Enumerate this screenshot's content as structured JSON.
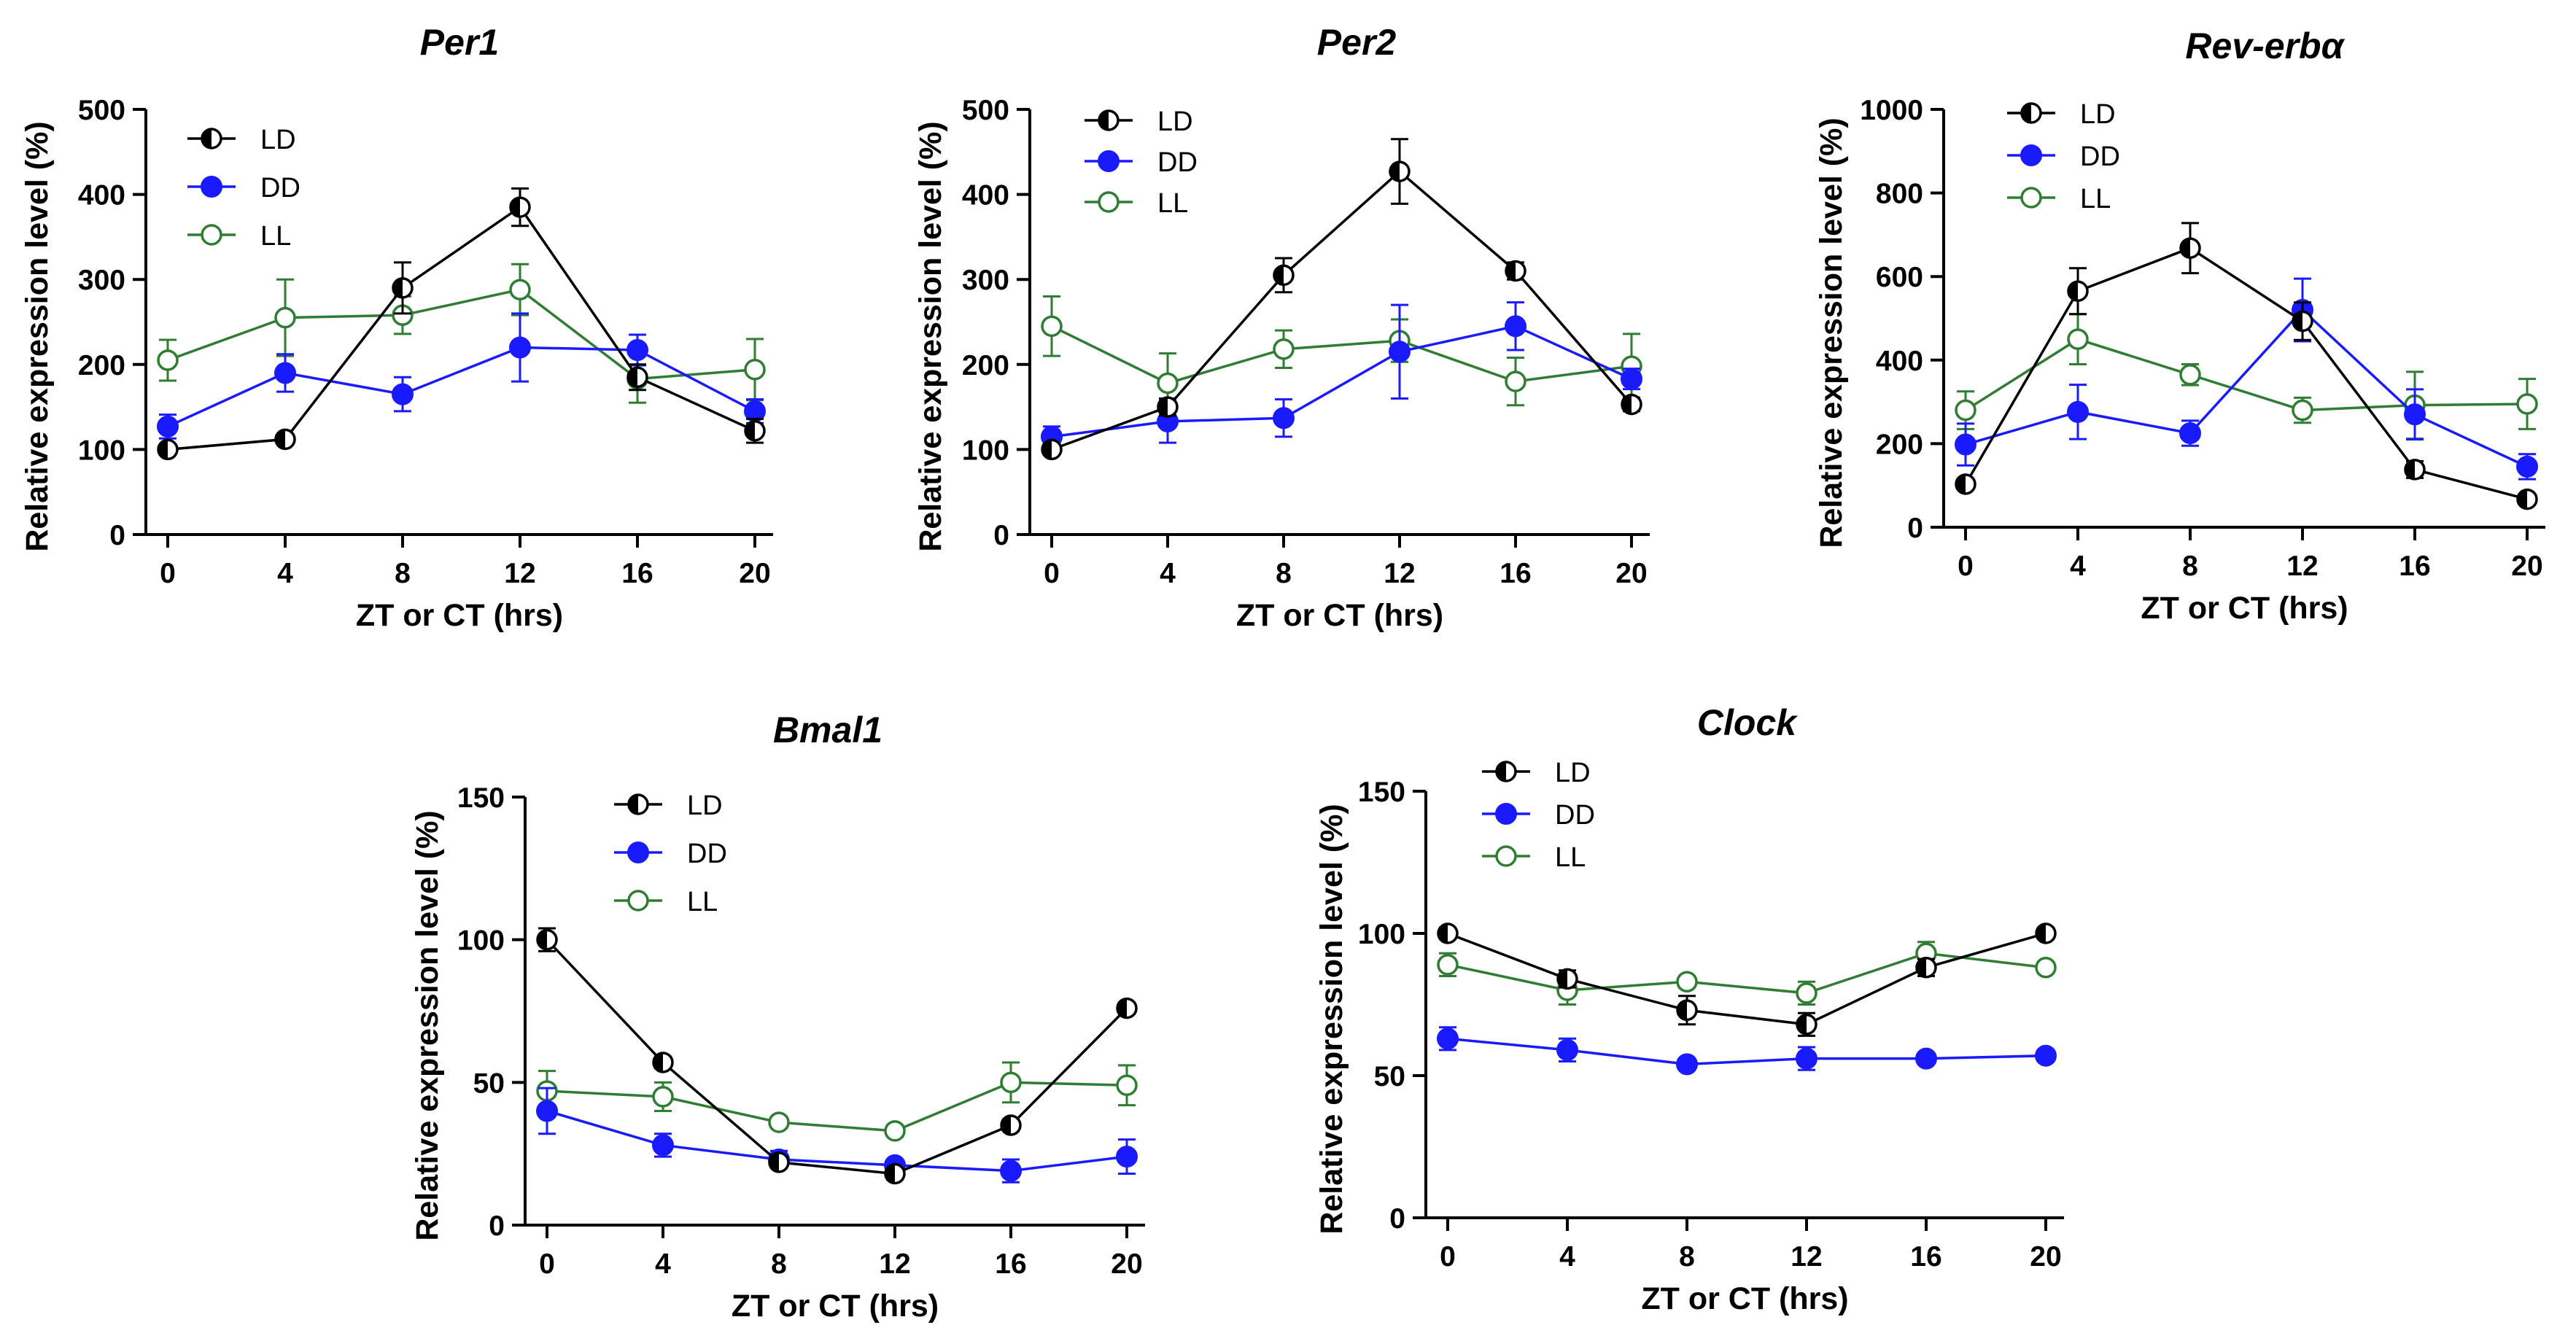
{
  "chart_data": [
    {
      "type": "line",
      "title": "Per1",
      "xlabel": "ZT or CT (hrs)",
      "ylabel": "Relative expression level (%)",
      "x": [
        0,
        4,
        8,
        12,
        16,
        20
      ],
      "xlim": [
        0,
        20
      ],
      "ylim": [
        0,
        500
      ],
      "yticks": [
        0,
        100,
        200,
        300,
        400,
        500
      ],
      "legend": "top-left",
      "series": [
        {
          "name": "LD",
          "values": [
            100,
            112,
            290,
            385,
            185,
            122
          ],
          "errors": [
            6,
            6,
            30,
            22,
            15,
            14
          ]
        },
        {
          "name": "DD",
          "values": [
            127,
            190,
            165,
            220,
            217,
            145
          ],
          "errors": [
            14,
            22,
            20,
            40,
            18,
            14
          ]
        },
        {
          "name": "LL",
          "values": [
            205,
            255,
            258,
            288,
            183,
            194
          ],
          "errors": [
            24,
            45,
            22,
            30,
            28,
            36
          ]
        }
      ]
    },
    {
      "type": "line",
      "title": "Per2",
      "xlabel": "ZT or CT (hrs)",
      "ylabel": "Relative expression level (%)",
      "x": [
        0,
        4,
        8,
        12,
        16,
        20
      ],
      "xlim": [
        0,
        20
      ],
      "ylim": [
        0,
        500
      ],
      "yticks": [
        0,
        100,
        200,
        300,
        400,
        500
      ],
      "legend": "top-left",
      "series": [
        {
          "name": "LD",
          "values": [
            100,
            150,
            305,
            427,
            310,
            153
          ],
          "errors": [
            6,
            10,
            20,
            38,
            10,
            8
          ]
        },
        {
          "name": "DD",
          "values": [
            115,
            133,
            137,
            215,
            245,
            183
          ],
          "errors": [
            12,
            25,
            22,
            55,
            28,
            12
          ]
        },
        {
          "name": "LL",
          "values": [
            245,
            178,
            218,
            228,
            180,
            198
          ],
          "errors": [
            35,
            35,
            22,
            25,
            28,
            38
          ]
        }
      ]
    },
    {
      "type": "line",
      "title": "Rev-erbα",
      "xlabel": "ZT or CT (hrs)",
      "ylabel": "Relative expression level (%)",
      "x": [
        0,
        4,
        8,
        12,
        16,
        20
      ],
      "xlim": [
        0,
        20
      ],
      "ylim": [
        0,
        1000
      ],
      "yticks": [
        0,
        200,
        400,
        600,
        800,
        1000
      ],
      "legend": "top-left",
      "series": [
        {
          "name": "LD",
          "values": [
            103,
            565,
            668,
            493,
            138,
            67
          ],
          "errors": [
            10,
            55,
            60,
            45,
            20,
            10
          ]
        },
        {
          "name": "DD",
          "values": [
            198,
            276,
            225,
            520,
            270,
            145
          ],
          "errors": [
            50,
            65,
            30,
            75,
            60,
            30
          ]
        },
        {
          "name": "LL",
          "values": [
            280,
            450,
            365,
            280,
            292,
            295
          ],
          "errors": [
            45,
            60,
            25,
            30,
            80,
            60
          ]
        }
      ]
    },
    {
      "type": "line",
      "title": "Bmal1",
      "xlabel": "ZT or CT (hrs)",
      "ylabel": "Relative expression level (%)",
      "x": [
        0,
        4,
        8,
        12,
        16,
        20
      ],
      "xlim": [
        0,
        20
      ],
      "ylim": [
        0,
        150
      ],
      "yticks": [
        0,
        50,
        100,
        150
      ],
      "legend": "top-center",
      "series": [
        {
          "name": "LD",
          "values": [
            100,
            57,
            22,
            18,
            35,
            76
          ],
          "errors": [
            4,
            2,
            2,
            2,
            2,
            2
          ]
        },
        {
          "name": "DD",
          "values": [
            40,
            28,
            23,
            21,
            19,
            24
          ],
          "errors": [
            8,
            4,
            3,
            2,
            4,
            6
          ]
        },
        {
          "name": "LL",
          "values": [
            47,
            45,
            36,
            33,
            50,
            49
          ],
          "errors": [
            7,
            5,
            2,
            2,
            7,
            7
          ]
        }
      ]
    },
    {
      "type": "line",
      "title": "Clock",
      "xlabel": "ZT or CT (hrs)",
      "ylabel": "Relative expression level (%)",
      "x": [
        0,
        4,
        8,
        12,
        16,
        20
      ],
      "xlim": [
        0,
        20
      ],
      "ylim": [
        0,
        150
      ],
      "yticks": [
        0,
        50,
        100,
        150
      ],
      "legend": "top-left",
      "series": [
        {
          "name": "LD",
          "values": [
            100,
            84,
            73,
            68,
            88,
            100
          ],
          "errors": [
            2,
            3,
            5,
            4,
            3,
            2
          ]
        },
        {
          "name": "DD",
          "values": [
            63,
            59,
            54,
            56,
            56,
            57
          ],
          "errors": [
            4,
            4,
            2,
            4,
            2,
            2
          ]
        },
        {
          "name": "LL",
          "values": [
            89,
            80,
            83,
            79,
            93,
            88
          ],
          "errors": [
            4,
            5,
            2,
            4,
            4,
            2
          ]
        }
      ]
    }
  ],
  "colors": {
    "LD": "#000000",
    "DD": "#1a1aff",
    "LL": "#2e7d32"
  }
}
